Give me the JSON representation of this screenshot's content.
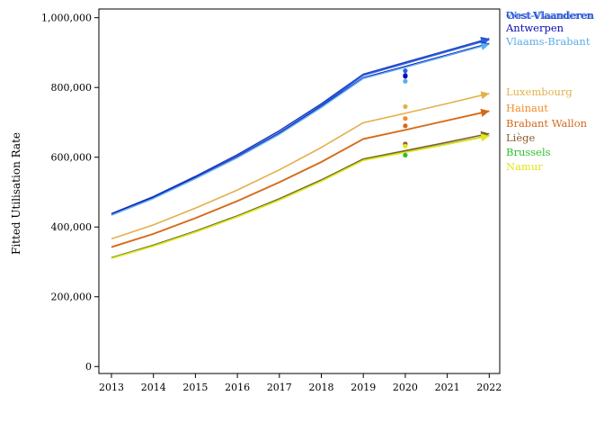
{
  "chart_data": {
    "type": "line",
    "title": "",
    "xlabel": "",
    "ylabel": "Fitted Utilisation Rate",
    "x": [
      2013,
      2014,
      2015,
      2016,
      2017,
      2018,
      2019,
      2020,
      2021,
      2022
    ],
    "x_tick_labels": [
      "2013",
      "2014",
      "2015",
      "2016",
      "2017",
      "2018",
      "2019",
      "2020",
      "2021",
      "2022"
    ],
    "y_ticks": [
      0,
      200000,
      400000,
      600000,
      800000,
      1000000
    ],
    "y_tick_labels": [
      "0",
      "200,000",
      "400,000",
      "600,000",
      "800,000",
      "1,000,000"
    ],
    "xlim": [
      2012.7,
      2022.25
    ],
    "ylim": [
      -20000,
      1025000
    ],
    "grid": false,
    "legend": "right, labels at line ends",
    "series": [
      {
        "name": "Oost-Vlaanderen",
        "color": "#1f3fbf",
        "values": [
          438000,
          487000,
          545000,
          607000,
          676000,
          753000,
          838000,
          872000,
          906000,
          940000
        ],
        "actual_2020": 835000
      },
      {
        "name": "West-Vlaanderen",
        "color": "#2a62e0",
        "values": [
          435000,
          483000,
          540000,
          602000,
          670000,
          748000,
          835000,
          869000,
          903000,
          937000
        ],
        "actual_2020": 848000
      },
      {
        "name": "Antwerpen",
        "color": "#0b0bb8",
        "values": [
          436000,
          484000,
          541000,
          601000,
          668000,
          745000,
          828000,
          860000,
          893000,
          926000
        ],
        "actual_2020": 832000
      },
      {
        "name": "Vlaams-Brabant",
        "color": "#5aaeea",
        "values": [
          434000,
          482000,
          539000,
          599000,
          666000,
          743000,
          826000,
          858000,
          891000,
          924000
        ],
        "actual_2020": 818000
      },
      {
        "name": "Luxembourg",
        "color": "#e3b04b",
        "values": [
          366000,
          406000,
          454000,
          506000,
          564000,
          628000,
          699000,
          726000,
          754000,
          783000
        ],
        "actual_2020": 745000
      },
      {
        "name": "Hainaut",
        "color": "#f28c28",
        "values": [
          343000,
          381000,
          426000,
          475000,
          529000,
          587000,
          653000,
          679000,
          706000,
          733000
        ],
        "actual_2020": 711000
      },
      {
        "name": "Brabant Wallon",
        "color": "#d2691e",
        "values": [
          342000,
          380000,
          425000,
          474000,
          528000,
          586000,
          652000,
          678000,
          705000,
          732000
        ],
        "actual_2020": 690000
      },
      {
        "name": "Liège",
        "color": "#8b5a2b",
        "values": [
          312000,
          348000,
          388000,
          432000,
          481000,
          535000,
          595000,
          619000,
          643000,
          668000
        ],
        "actual_2020": 638000
      },
      {
        "name": "Brussels",
        "color": "#2cbf2c",
        "values": [
          311000,
          346000,
          386000,
          430000,
          478000,
          532000,
          592000,
          615000,
          638000,
          662000
        ],
        "actual_2020": 606000
      },
      {
        "name": "Namur",
        "color": "#e5e51a",
        "values": [
          310000,
          345000,
          385000,
          429000,
          477000,
          531000,
          591000,
          614000,
          637000,
          661000
        ],
        "actual_2020": 632000
      }
    ],
    "legend_order": [
      "Oost-Vlaanderen",
      "West-Vlaanderen",
      "Antwerpen",
      "Vlaams-Brabant",
      "Luxembourg",
      "Hainaut",
      "Brabant Wallon",
      "Liège",
      "Brussels",
      "Namur"
    ]
  }
}
